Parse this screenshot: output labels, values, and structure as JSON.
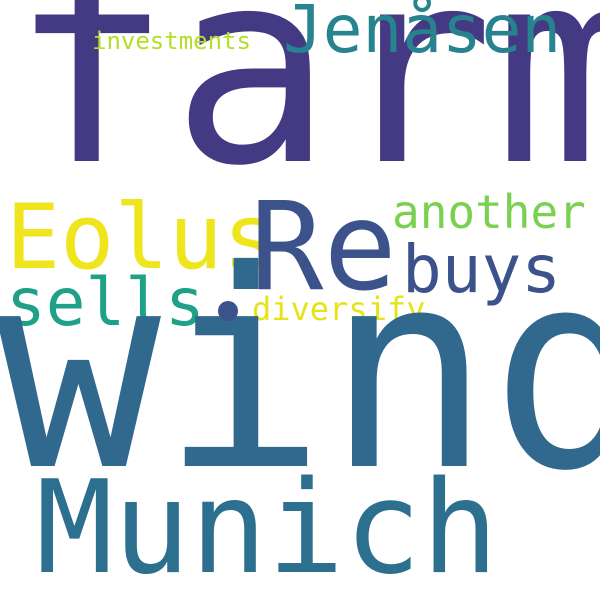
{
  "words": [
    {
      "id": "wind",
      "text": "wind",
      "color": "#31688e"
    },
    {
      "id": "farm",
      "text": "farm",
      "color": "#443983"
    },
    {
      "id": "munich",
      "text": "Munich",
      "color": "#2d6f8e"
    },
    {
      "id": "re",
      "text": "Re",
      "color": "#3b528b"
    },
    {
      "id": "eolus",
      "text": "Eolus",
      "color": "#efe51c"
    },
    {
      "id": "jenasen",
      "text": "Jenåsen",
      "color": "#26838f"
    },
    {
      "id": "buys",
      "text": "buys",
      "color": "#3b528b"
    },
    {
      "id": "sells",
      "text": "sells",
      "color": "#1fa187"
    },
    {
      "id": "another",
      "text": "another",
      "color": "#7ad151"
    },
    {
      "id": "diversify",
      "text": "diversify",
      "color": "#e5e419"
    },
    {
      "id": "investments",
      "text": "investments",
      "color": "#b5de2b"
    },
    {
      "id": "dot",
      "text": ".",
      "color": "#3b528b"
    }
  ]
}
